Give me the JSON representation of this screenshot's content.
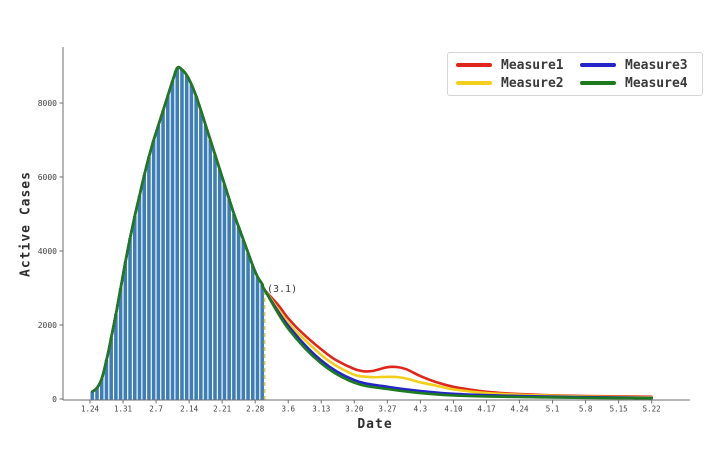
{
  "chart_data": {
    "type": "bar+line",
    "title": "",
    "xlabel": "Date",
    "ylabel": "Active Cases",
    "x_tick_labels": [
      "1.24",
      "1.31",
      "2.7",
      "2.14",
      "2.21",
      "2.28",
      "3.6",
      "3.13",
      "3.20",
      "3.27",
      "4.3",
      "4.10",
      "4.17",
      "4.24",
      "5.1",
      "5.8",
      "5.15",
      "5.22"
    ],
    "x_tick_days": [
      0,
      7,
      14,
      21,
      28,
      35,
      42,
      49,
      56,
      63,
      70,
      77,
      84,
      91,
      98,
      105,
      112,
      119
    ],
    "y_ticks": [
      0,
      2000,
      4000,
      6000,
      8000
    ],
    "ylim": [
      0,
      9500
    ],
    "grid": false,
    "legend_position": "upper right",
    "axis_color": "#6e6e6e",
    "tick_text_color": "#404040",
    "histogram": {
      "color": "#3d7eb8",
      "start_date": "1.24",
      "bin_days": 1,
      "values": [
        200,
        300,
        550,
        1050,
        1650,
        2300,
        3000,
        3700,
        4350,
        4950,
        5500,
        6050,
        6550,
        7000,
        7400,
        7800,
        8200,
        8600,
        8950,
        8900,
        8750,
        8500,
        8180,
        7800,
        7400,
        7000,
        6600,
        6200,
        5800,
        5400,
        5000,
        4650,
        4300,
        3950,
        3600,
        3300,
        3100
      ]
    },
    "series_follow_history": true,
    "series": [
      {
        "name": "Measure1",
        "color": "#e0261c",
        "x": [
          37,
          40,
          42,
          45,
          49,
          52,
          56,
          58,
          60,
          63,
          65,
          67,
          70,
          73,
          77,
          81,
          84,
          88,
          91,
          98,
          105,
          112,
          119
        ],
        "y": [
          2950,
          2520,
          2180,
          1780,
          1340,
          1060,
          810,
          750,
          760,
          860,
          865,
          805,
          620,
          470,
          330,
          245,
          195,
          155,
          135,
          100,
          82,
          70,
          60
        ]
      },
      {
        "name": "Measure2",
        "color": "#f2cf1d",
        "x": [
          37,
          42,
          45,
          49,
          52,
          56,
          58,
          60,
          63,
          65,
          67,
          70,
          73,
          77,
          84,
          91,
          98,
          105,
          112,
          119
        ],
        "y": [
          2950,
          2060,
          1660,
          1190,
          910,
          655,
          605,
          590,
          600,
          595,
          555,
          450,
          370,
          260,
          160,
          115,
          88,
          68,
          55,
          45
        ]
      },
      {
        "name": "Measure3",
        "color": "#2424c8",
        "x": [
          37,
          42,
          49,
          56,
          63,
          70,
          77,
          84,
          91,
          98,
          105,
          112,
          119
        ],
        "y": [
          2950,
          1980,
          1040,
          510,
          330,
          215,
          140,
          103,
          80,
          62,
          48,
          38,
          30
        ]
      },
      {
        "name": "Measure4",
        "color": "#1e7a1e",
        "x": [
          37,
          42,
          49,
          56,
          63,
          70,
          77,
          84,
          91,
          98,
          105,
          112,
          119
        ],
        "y": [
          2950,
          1900,
          960,
          440,
          270,
          160,
          95,
          70,
          55,
          42,
          32,
          25,
          20
        ]
      }
    ],
    "vline": {
      "day": 37,
      "date_label": "3.1",
      "annotation": "(3.1)",
      "color": "#e3c83a",
      "style": "dashed",
      "top_value": 2950
    }
  }
}
